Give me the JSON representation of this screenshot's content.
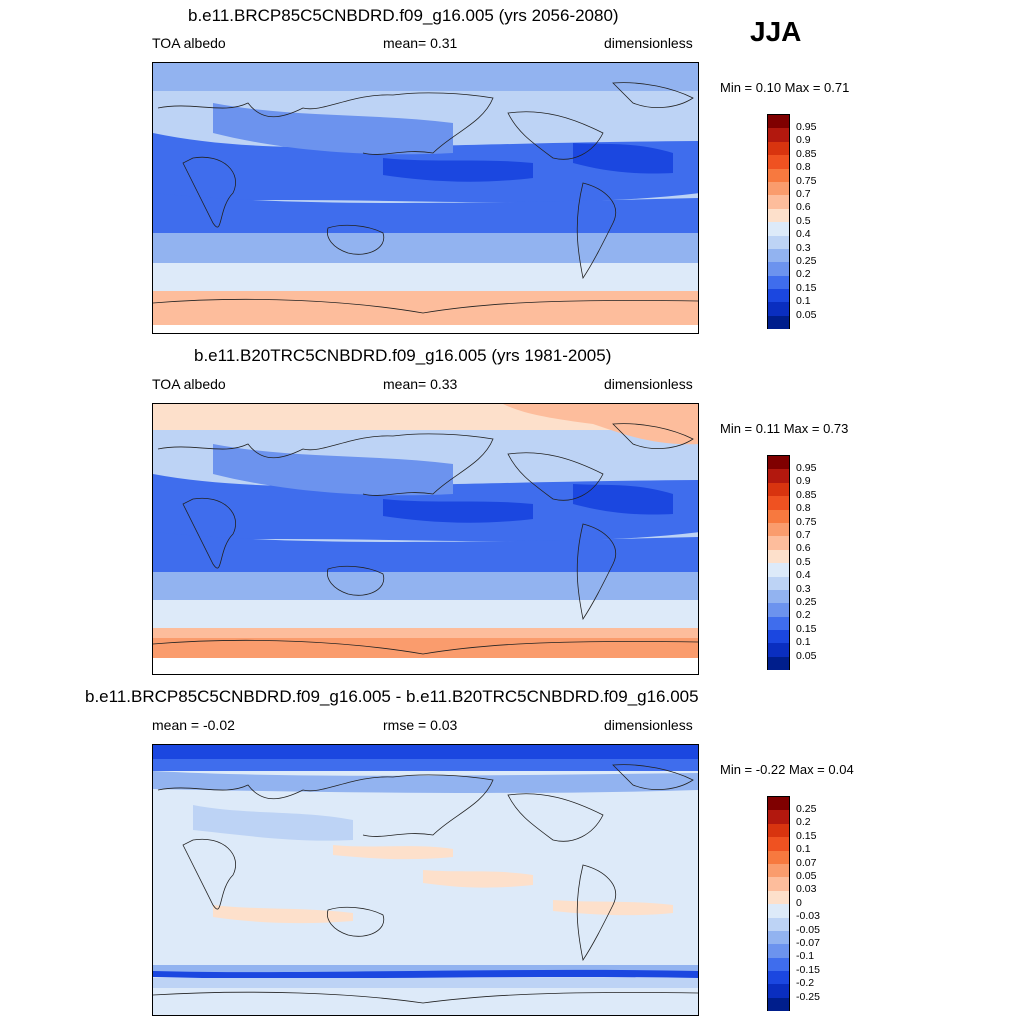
{
  "season": "JJA",
  "panels": [
    {
      "title": "b.e11.BRCP85C5CNBDRD.f09_g16.005 (yrs 2056-2080)",
      "left_label": "TOA albedo",
      "center_label": "mean=   0.31",
      "right_label": "dimensionless",
      "stats": "Min =   0.10 Max =   0.71",
      "colorbar": [
        "0.95",
        "0.9",
        "0.85",
        "0.8",
        "0.75",
        "0.7",
        "0.6",
        "0.5",
        "0.4",
        "0.3",
        "0.25",
        "0.2",
        "0.15",
        "0.1",
        "0.05"
      ]
    },
    {
      "title": "b.e11.B20TRC5CNBDRD.f09_g16.005 (yrs 1981-2005)",
      "left_label": "TOA albedo",
      "center_label": "mean=   0.33",
      "right_label": "dimensionless",
      "stats": "Min =   0.11 Max =   0.73",
      "colorbar": [
        "0.95",
        "0.9",
        "0.85",
        "0.8",
        "0.75",
        "0.7",
        "0.6",
        "0.5",
        "0.4",
        "0.3",
        "0.25",
        "0.2",
        "0.15",
        "0.1",
        "0.05"
      ]
    },
    {
      "title": "b.e11.BRCP85C5CNBDRD.f09_g16.005 - b.e11.B20TRC5CNBDRD.f09_g16.005",
      "left_label": "mean =  -0.02",
      "center_label": "rmse =   0.03",
      "right_label": "dimensionless",
      "stats": "Min =  -0.22 Max =   0.04",
      "colorbar": [
        "0.25",
        "0.2",
        "0.15",
        "0.1",
        "0.07",
        "0.05",
        "0.03",
        "0",
        "-0.03",
        "-0.05",
        "-0.07",
        "-0.1",
        "-0.15",
        "-0.2",
        "-0.25"
      ]
    }
  ],
  "colors": {
    "scale": [
      "#7f0000",
      "#b2180e",
      "#d8340f",
      "#ef5221",
      "#f7793f",
      "#fa9c6d",
      "#fdbd9c",
      "#fde0cb",
      "#ddeaf9",
      "#bdd3f5",
      "#92b3f0",
      "#6c93ee",
      "#3f6ded",
      "#1b47e0",
      "#0a2ec0",
      "#001e8c"
    ],
    "land_line": "#222222"
  }
}
